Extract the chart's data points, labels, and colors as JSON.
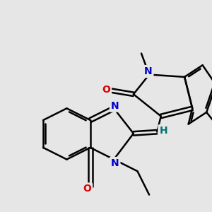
{
  "background_color": "#e6e6e6",
  "bond_color": "#000000",
  "bond_width": 1.8,
  "atom_colors": {
    "N": "#0000cc",
    "O": "#dd0000",
    "H": "#007070",
    "C": "#000000"
  },
  "font_size_atoms": 10,
  "figsize": [
    3.0,
    3.0
  ],
  "dpi": 100
}
